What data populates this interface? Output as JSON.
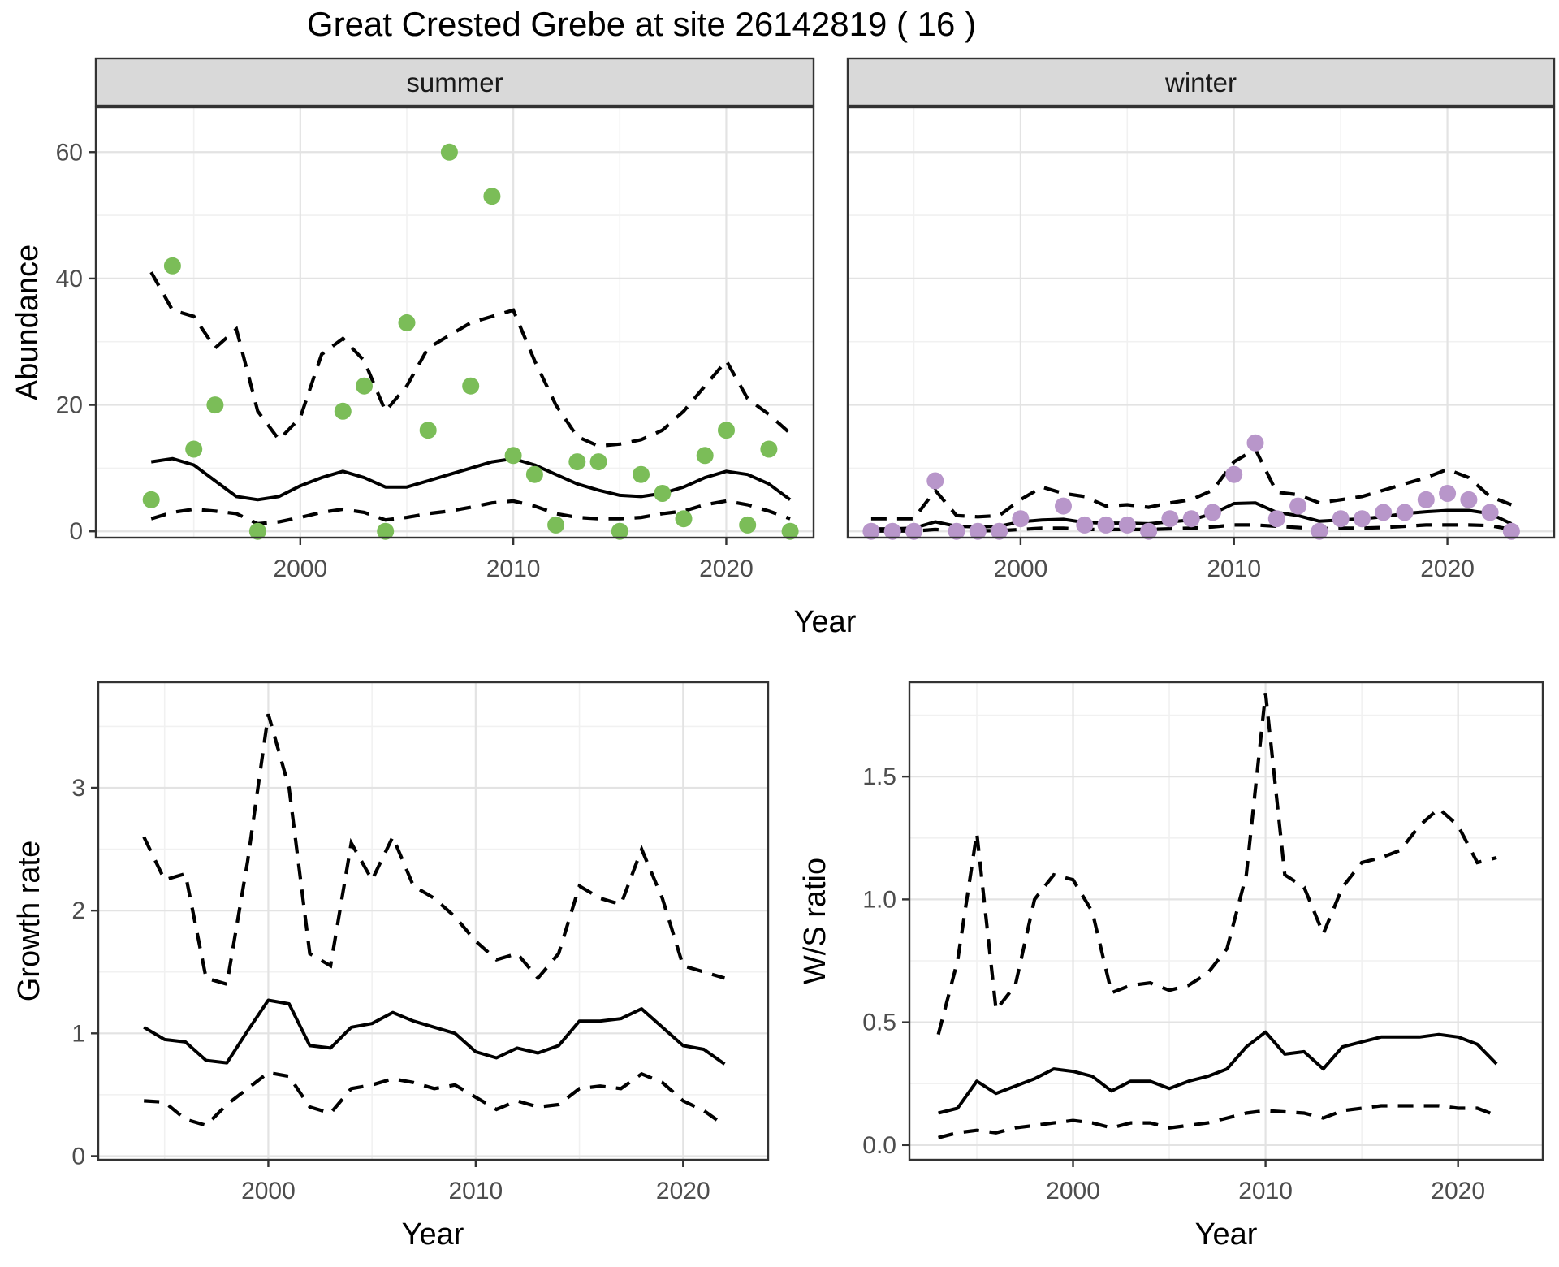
{
  "title": "Great Crested Grebe at site 26142819 ( 16 )",
  "colors": {
    "summer_point": "#7bbd58",
    "winter_point": "#b896ca",
    "fit_line": "#000000",
    "ci_line": "#000000",
    "strip_bg": "#d9d9d9",
    "strip_border": "#333333",
    "panel_border": "#333333",
    "grid_major": "#e3e3e3",
    "grid_minor": "#f1f1f1",
    "axis_text": "#4d4d4d",
    "text": "#000000",
    "background": "#ffffff"
  },
  "chart_data": [
    {
      "id": "abundance-summer",
      "type": "scatter",
      "facet_label": "summer",
      "xlabel": "Year",
      "ylabel": "Abundance",
      "xlim": [
        1990.4,
        2024.1
      ],
      "ylim": [
        -1.0,
        67.1
      ],
      "x_ticks": {
        "labels": [
          "2000",
          "2010",
          "2020"
        ],
        "values": [
          2000,
          2010,
          2020
        ],
        "minor": [
          1995,
          2005,
          2015
        ]
      },
      "y_ticks": {
        "labels": [
          "0",
          "20",
          "40",
          "60"
        ],
        "values": [
          0,
          20,
          40,
          60
        ],
        "minor": [
          10,
          30,
          50
        ]
      },
      "points": {
        "years": [
          1993,
          1994,
          1995,
          1996,
          1998,
          2002,
          2003,
          2004,
          2005,
          2006,
          2007,
          2008,
          2009,
          2010,
          2011,
          2012,
          2013,
          2014,
          2015,
          2016,
          2017,
          2018,
          2019,
          2020,
          2021,
          2022,
          2023
        ],
        "values": [
          5,
          42,
          13,
          20,
          0,
          19,
          23,
          0,
          33,
          16,
          60,
          23,
          53,
          12,
          9,
          1,
          11,
          11,
          0,
          9,
          6,
          2,
          12,
          16,
          1,
          13,
          0
        ]
      },
      "fit": {
        "years": [
          1993,
          1994,
          1995,
          1996,
          1997,
          1998,
          1999,
          2000,
          2001,
          2002,
          2003,
          2004,
          2005,
          2006,
          2007,
          2008,
          2009,
          2010,
          2011,
          2012,
          2013,
          2014,
          2015,
          2016,
          2017,
          2018,
          2019,
          2020,
          2021,
          2022,
          2023
        ],
        "values": [
          11,
          11.5,
          10.5,
          8,
          5.5,
          5,
          5.5,
          7.2,
          8.5,
          9.5,
          8.5,
          7,
          7,
          8,
          9,
          10,
          11,
          11.5,
          10.5,
          9,
          7.5,
          6.5,
          5.7,
          5.5,
          6,
          7,
          8.5,
          9.5,
          9,
          7.5,
          5
        ]
      },
      "upper_ci": {
        "years": [
          1993,
          1994,
          1995,
          1996,
          1997,
          1998,
          1999,
          2000,
          2001,
          2002,
          2003,
          2004,
          2005,
          2006,
          2007,
          2008,
          2009,
          2010,
          2011,
          2012,
          2013,
          2014,
          2015,
          2016,
          2017,
          2018,
          2019,
          2020,
          2021,
          2022,
          2023
        ],
        "values": [
          41,
          35,
          34,
          29,
          32,
          19,
          14.5,
          18,
          28,
          30.5,
          27,
          19,
          23,
          29,
          31,
          33,
          34,
          35,
          27,
          20,
          15,
          13.5,
          13.8,
          14.5,
          16,
          19,
          23,
          27,
          21,
          18.5,
          15.5
        ]
      },
      "lower_ci": {
        "years": [
          1993,
          1994,
          1995,
          1996,
          1997,
          1998,
          1999,
          2000,
          2001,
          2002,
          2003,
          2004,
          2005,
          2006,
          2007,
          2008,
          2009,
          2010,
          2011,
          2012,
          2013,
          2014,
          2015,
          2016,
          2017,
          2018,
          2019,
          2020,
          2021,
          2022,
          2023
        ],
        "values": [
          2,
          3,
          3.5,
          3.2,
          2.8,
          1.2,
          1.5,
          2.2,
          3,
          3.5,
          3,
          1.8,
          2.2,
          2.8,
          3.2,
          3.8,
          4.5,
          4.8,
          4,
          2.8,
          2.2,
          2,
          2,
          2.2,
          2.8,
          3.2,
          4.2,
          4.8,
          4.2,
          3.2,
          2
        ]
      },
      "point_color_key": "summer_point"
    },
    {
      "id": "abundance-winter",
      "type": "scatter",
      "facet_label": "winter",
      "xlabel": "Year",
      "ylabel": "Abundance",
      "xlim": [
        1991.9,
        2025.0
      ],
      "ylim": [
        -1.0,
        67.1
      ],
      "x_ticks": {
        "labels": [
          "2000",
          "2010",
          "2020"
        ],
        "values": [
          2000,
          2010,
          2020
        ],
        "minor": [
          1995,
          2005,
          2015
        ]
      },
      "y_ticks": {
        "labels": [
          "0",
          "20",
          "40",
          "60"
        ],
        "values": [
          0,
          20,
          40,
          60
        ],
        "minor": [
          10,
          30,
          50
        ]
      },
      "points": {
        "years": [
          1993,
          1994,
          1995,
          1996,
          1997,
          1998,
          1999,
          2000,
          2002,
          2003,
          2004,
          2005,
          2006,
          2007,
          2008,
          2009,
          2010,
          2011,
          2012,
          2013,
          2014,
          2015,
          2016,
          2017,
          2018,
          2019,
          2020,
          2021,
          2022,
          2023
        ],
        "values": [
          0,
          0,
          0,
          8,
          0,
          0,
          0,
          2,
          4,
          1,
          1,
          1,
          0,
          2,
          2,
          3,
          9,
          14,
          2,
          4,
          0,
          2,
          2,
          3,
          3,
          5,
          6,
          5,
          3,
          0
        ]
      },
      "fit": {
        "years": [
          1993,
          1994,
          1995,
          1996,
          1997,
          1998,
          1999,
          2000,
          2001,
          2002,
          2003,
          2004,
          2005,
          2006,
          2007,
          2008,
          2009,
          2010,
          2011,
          2012,
          2013,
          2014,
          2015,
          2016,
          2017,
          2018,
          2019,
          2020,
          2021,
          2022,
          2023
        ],
        "values": [
          0.4,
          0.4,
          0.5,
          1.5,
          0.8,
          0.7,
          0.8,
          1.5,
          1.8,
          1.9,
          1.4,
          1.3,
          1.3,
          1.2,
          1.5,
          1.8,
          2.8,
          4.4,
          4.5,
          3,
          2.5,
          1.6,
          1.8,
          2,
          2.3,
          2.8,
          3.1,
          3.3,
          3.3,
          2.8,
          1.2
        ]
      },
      "upper_ci": {
        "years": [
          1993,
          1994,
          1995,
          1996,
          1997,
          1998,
          1999,
          2000,
          2001,
          2002,
          2003,
          2004,
          2005,
          2006,
          2007,
          2008,
          2009,
          2010,
          2011,
          2012,
          2013,
          2014,
          2015,
          2016,
          2017,
          2018,
          2019,
          2020,
          2021,
          2022,
          2023
        ],
        "values": [
          2,
          2,
          2,
          6.5,
          2.5,
          2.3,
          2.5,
          5,
          7,
          6,
          5.5,
          4,
          4.2,
          3.8,
          4.5,
          5,
          6.5,
          11,
          13,
          6.2,
          5.8,
          4.5,
          5,
          5.5,
          6.5,
          7.5,
          8.5,
          9.8,
          8.5,
          5.5,
          4.2
        ]
      },
      "lower_ci": {
        "years": [
          1993,
          1994,
          1995,
          1996,
          1997,
          1998,
          1999,
          2000,
          2001,
          2002,
          2003,
          2004,
          2005,
          2006,
          2007,
          2008,
          2009,
          2010,
          2011,
          2012,
          2013,
          2014,
          2015,
          2016,
          2017,
          2018,
          2019,
          2020,
          2021,
          2022,
          2023
        ],
        "values": [
          0.05,
          0.05,
          0.05,
          0.3,
          0.1,
          0.1,
          0.1,
          0.3,
          0.5,
          0.5,
          0.3,
          0.3,
          0.3,
          0.3,
          0.4,
          0.5,
          0.7,
          1,
          1,
          0.8,
          0.6,
          0.4,
          0.5,
          0.5,
          0.6,
          0.8,
          1,
          1,
          1,
          0.9,
          0.3
        ]
      },
      "point_color_key": "winter_point"
    },
    {
      "id": "growth-rate",
      "type": "line",
      "facet_label": null,
      "xlabel": "Year",
      "ylabel": "Growth rate",
      "xlim": [
        1991.8,
        2024.1
      ],
      "ylim": [
        -0.03,
        3.86
      ],
      "x_ticks": {
        "labels": [
          "2000",
          "2010",
          "2020"
        ],
        "values": [
          2000,
          2010,
          2020
        ],
        "minor": [
          1995,
          2005,
          2015
        ]
      },
      "y_ticks": {
        "labels": [
          "0",
          "1",
          "2",
          "3"
        ],
        "values": [
          0,
          1,
          2,
          3
        ],
        "minor": [
          0.5,
          1.5,
          2.5,
          3.5
        ]
      },
      "points": null,
      "fit": {
        "years": [
          1994,
          1995,
          1996,
          1997,
          1998,
          1999,
          2000,
          2001,
          2002,
          2003,
          2004,
          2005,
          2006,
          2007,
          2008,
          2009,
          2010,
          2011,
          2012,
          2013,
          2014,
          2015,
          2016,
          2017,
          2018,
          2019,
          2020,
          2021,
          2022
        ],
        "values": [
          1.05,
          0.95,
          0.93,
          0.78,
          0.76,
          1.02,
          1.27,
          1.24,
          0.9,
          0.88,
          1.05,
          1.08,
          1.17,
          1.1,
          1.05,
          1.0,
          0.85,
          0.8,
          0.88,
          0.84,
          0.9,
          1.1,
          1.1,
          1.12,
          1.2,
          1.05,
          0.9,
          0.87,
          0.75
        ]
      },
      "upper_ci": {
        "years": [
          1994,
          1995,
          1996,
          1997,
          1998,
          1999,
          2000,
          2001,
          2002,
          2003,
          2004,
          2005,
          2006,
          2007,
          2008,
          2009,
          2010,
          2011,
          2012,
          2013,
          2014,
          2015,
          2016,
          2017,
          2018,
          2019,
          2020,
          2021,
          2022
        ],
        "values": [
          2.6,
          2.25,
          2.3,
          1.45,
          1.4,
          2.4,
          3.6,
          3.0,
          1.65,
          1.55,
          2.55,
          2.25,
          2.6,
          2.2,
          2.1,
          1.95,
          1.75,
          1.6,
          1.65,
          1.45,
          1.65,
          2.2,
          2.1,
          2.05,
          2.5,
          2.1,
          1.55,
          1.5,
          1.45
        ]
      },
      "lower_ci": {
        "years": [
          1994,
          1995,
          1996,
          1997,
          1998,
          1999,
          2000,
          2001,
          2002,
          2003,
          2004,
          2005,
          2006,
          2007,
          2008,
          2009,
          2010,
          2011,
          2012,
          2013,
          2014,
          2015,
          2016,
          2017,
          2018,
          2019,
          2020,
          2021,
          2022
        ],
        "values": [
          0.45,
          0.44,
          0.3,
          0.25,
          0.42,
          0.55,
          0.68,
          0.65,
          0.4,
          0.35,
          0.55,
          0.58,
          0.63,
          0.6,
          0.55,
          0.58,
          0.48,
          0.38,
          0.45,
          0.4,
          0.42,
          0.55,
          0.57,
          0.55,
          0.67,
          0.6,
          0.45,
          0.37,
          0.25
        ]
      },
      "point_color_key": null
    },
    {
      "id": "ws-ratio",
      "type": "line",
      "facet_label": null,
      "xlabel": "Year",
      "ylabel": "W/S ratio",
      "xlim": [
        1991.5,
        2024.4
      ],
      "ylim": [
        -0.06,
        1.884
      ],
      "x_ticks": {
        "labels": [
          "2000",
          "2010",
          "2020"
        ],
        "values": [
          2000,
          2010,
          2020
        ],
        "minor": [
          1995,
          2005,
          2015
        ]
      },
      "y_ticks": {
        "labels": [
          "0.0",
          "0.5",
          "1.0",
          "1.5"
        ],
        "values": [
          0,
          0.5,
          1.0,
          1.5
        ],
        "minor": [
          0.25,
          0.75,
          1.25,
          1.75
        ]
      },
      "points": null,
      "fit": {
        "years": [
          1993,
          1994,
          1995,
          1996,
          1997,
          1998,
          1999,
          2000,
          2001,
          2002,
          2003,
          2004,
          2005,
          2006,
          2007,
          2008,
          2009,
          2010,
          2011,
          2012,
          2013,
          2014,
          2015,
          2016,
          2017,
          2018,
          2019,
          2020,
          2021,
          2022
        ],
        "values": [
          0.13,
          0.15,
          0.26,
          0.21,
          0.24,
          0.27,
          0.31,
          0.3,
          0.28,
          0.22,
          0.26,
          0.26,
          0.23,
          0.26,
          0.28,
          0.31,
          0.4,
          0.46,
          0.37,
          0.38,
          0.31,
          0.4,
          0.42,
          0.44,
          0.44,
          0.44,
          0.45,
          0.44,
          0.41,
          0.33
        ]
      },
      "upper_ci": {
        "years": [
          1993,
          1994,
          1995,
          1996,
          1997,
          1998,
          1999,
          2000,
          2001,
          2002,
          2003,
          2004,
          2005,
          2006,
          2007,
          2008,
          2009,
          2010,
          2011,
          2012,
          2013,
          2014,
          2015,
          2016,
          2017,
          2018,
          2019,
          2020,
          2021,
          2022
        ],
        "values": [
          0.45,
          0.75,
          1.27,
          0.55,
          0.65,
          1.0,
          1.1,
          1.08,
          0.95,
          0.62,
          0.65,
          0.66,
          0.63,
          0.65,
          0.7,
          0.8,
          1.1,
          1.84,
          1.1,
          1.05,
          0.86,
          1.05,
          1.15,
          1.17,
          1.2,
          1.3,
          1.37,
          1.3,
          1.15,
          1.17
        ]
      },
      "lower_ci": {
        "years": [
          1993,
          1994,
          1995,
          1996,
          1997,
          1998,
          1999,
          2000,
          2001,
          2002,
          2003,
          2004,
          2005,
          2006,
          2007,
          2008,
          2009,
          2010,
          2011,
          2012,
          2013,
          2014,
          2015,
          2016,
          2017,
          2018,
          2019,
          2020,
          2021,
          2022
        ],
        "values": [
          0.03,
          0.05,
          0.06,
          0.05,
          0.07,
          0.08,
          0.09,
          0.1,
          0.09,
          0.07,
          0.09,
          0.09,
          0.07,
          0.08,
          0.09,
          0.11,
          0.13,
          0.14,
          0.135,
          0.13,
          0.11,
          0.14,
          0.15,
          0.16,
          0.16,
          0.16,
          0.16,
          0.15,
          0.15,
          0.12
        ]
      },
      "point_color_key": null
    }
  ]
}
